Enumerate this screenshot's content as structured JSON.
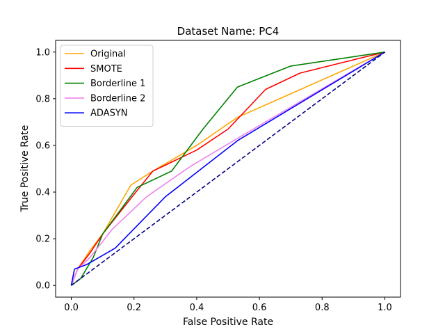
{
  "chart_data": {
    "type": "line",
    "title": "Dataset Name: PC4",
    "xlabel": "False Positive Rate",
    "ylabel": "True Positive Rate",
    "xlim": [
      -0.05,
      1.05
    ],
    "ylim": [
      -0.05,
      1.05
    ],
    "xticks": [
      "0.0",
      "0.2",
      "0.4",
      "0.6",
      "0.8",
      "1.0"
    ],
    "yticks": [
      "0.0",
      "0.2",
      "0.4",
      "0.6",
      "0.8",
      "1.0"
    ],
    "grid": false,
    "legend_position": "top-left",
    "series": [
      {
        "name": "Original",
        "color": "#FFA500",
        "x": [
          0,
          0.02,
          0.06,
          0.1,
          0.19,
          0.26,
          0.4,
          0.53,
          1.0
        ],
        "y": [
          0,
          0.07,
          0.15,
          0.22,
          0.43,
          0.49,
          0.6,
          0.72,
          1.0
        ]
      },
      {
        "name": "SMOTE",
        "color": "#FF0000",
        "x": [
          0,
          0.02,
          0.06,
          0.1,
          0.2,
          0.26,
          0.4,
          0.5,
          0.62,
          0.73,
          1.0
        ],
        "y": [
          0,
          0.07,
          0.14,
          0.22,
          0.39,
          0.49,
          0.58,
          0.67,
          0.84,
          0.91,
          1.0
        ]
      },
      {
        "name": "Borderline 1",
        "color": "#008000",
        "x": [
          0,
          0.03,
          0.07,
          0.1,
          0.21,
          0.32,
          0.42,
          0.53,
          0.7,
          1.0
        ],
        "y": [
          0,
          0.03,
          0.12,
          0.22,
          0.42,
          0.49,
          0.67,
          0.85,
          0.94,
          1.0
        ]
      },
      {
        "name": "Borderline 2",
        "color": "#EE82EE",
        "x": [
          0,
          0.02,
          0.06,
          0.13,
          0.24,
          0.38,
          0.53,
          1.0
        ],
        "y": [
          0,
          0.07,
          0.12,
          0.24,
          0.38,
          0.51,
          0.63,
          1.0
        ]
      },
      {
        "name": "ADASYN",
        "color": "#0000FF",
        "x": [
          0,
          0.01,
          0.05,
          0.14,
          0.3,
          0.53,
          1.0
        ],
        "y": [
          0,
          0.07,
          0.09,
          0.16,
          0.38,
          0.62,
          1.0
        ]
      },
      {
        "color": "#000080",
        "dashed": true,
        "x": [
          0,
          1.0
        ],
        "y": [
          0,
          1.0
        ]
      }
    ]
  }
}
